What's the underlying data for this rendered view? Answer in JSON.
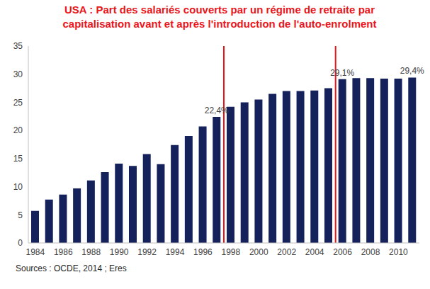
{
  "chart_data": {
    "type": "bar",
    "title": "USA : Part des salariés couverts par un régime de retraite par capitalisation avant et après l'introduction de l'auto-enrolment",
    "source": "Sources : OCDE, 2014 ; Eres",
    "x": [
      1984,
      1985,
      1986,
      1987,
      1988,
      1989,
      1990,
      1991,
      1992,
      1993,
      1994,
      1995,
      1996,
      1997,
      1998,
      1999,
      2000,
      2001,
      2002,
      2003,
      2004,
      2005,
      2006,
      2007,
      2008,
      2009,
      2010,
      2011
    ],
    "values": [
      5.7,
      7.7,
      8.6,
      9.7,
      11.1,
      12.6,
      14.1,
      13.7,
      15.8,
      14.0,
      17.4,
      19.0,
      20.7,
      22.4,
      24.2,
      25.0,
      25.5,
      26.5,
      27.0,
      27.0,
      27.1,
      27.5,
      29.1,
      29.3,
      29.3,
      29.2,
      29.2,
      29.4
    ],
    "value_labels": [
      null,
      null,
      null,
      null,
      null,
      null,
      null,
      null,
      null,
      null,
      null,
      null,
      null,
      "22,4%",
      null,
      null,
      null,
      null,
      null,
      null,
      null,
      null,
      "29,1%",
      null,
      null,
      null,
      null,
      "29,4%"
    ],
    "color": "#15215a",
    "xlim": [
      1983.5,
      2011.5
    ],
    "xticks": [
      1984,
      1986,
      1988,
      1990,
      1992,
      1994,
      1996,
      1998,
      2000,
      2002,
      2004,
      2006,
      2008,
      2010
    ],
    "ylim": [
      0,
      35
    ],
    "yticks": [
      0,
      5,
      10,
      15,
      20,
      25,
      30,
      35
    ],
    "vertical_lines": [
      1997.5,
      2005.5
    ],
    "grid": false
  }
}
